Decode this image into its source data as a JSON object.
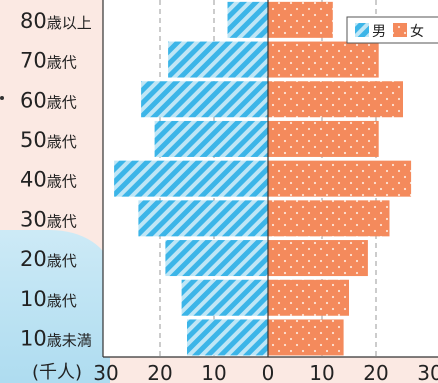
{
  "chart_data": {
    "type": "bar",
    "orientation": "horizontal-population-pyramid",
    "title": "",
    "unit_label": "(千人)",
    "categories": [
      {
        "num": "80",
        "suffix": "歳以上"
      },
      {
        "num": "70",
        "suffix": "歳代"
      },
      {
        "num": "60",
        "suffix": "歳代"
      },
      {
        "num": "50",
        "suffix": "歳代"
      },
      {
        "num": "40",
        "suffix": "歳代"
      },
      {
        "num": "30",
        "suffix": "歳代"
      },
      {
        "num": "20",
        "suffix": "歳代"
      },
      {
        "num": "10",
        "suffix": "歳代"
      },
      {
        "num": "10",
        "suffix": "歳未満"
      }
    ],
    "series": [
      {
        "name": "男",
        "color": "#3cb5e8",
        "values": [
          7.5,
          18.5,
          23.5,
          21,
          28.5,
          24,
          19,
          16,
          15
        ]
      },
      {
        "name": "女",
        "color": "#f48a5c",
        "values": [
          12,
          20.5,
          25,
          20.5,
          26.5,
          22.5,
          18.5,
          15,
          14
        ]
      }
    ],
    "x_ticks": [
      "30",
      "20",
      "10",
      "0",
      "10",
      "20",
      "30"
    ],
    "xlim": [
      -30,
      30
    ],
    "grid": "vertical dashed",
    "legend_position": "top-right"
  }
}
